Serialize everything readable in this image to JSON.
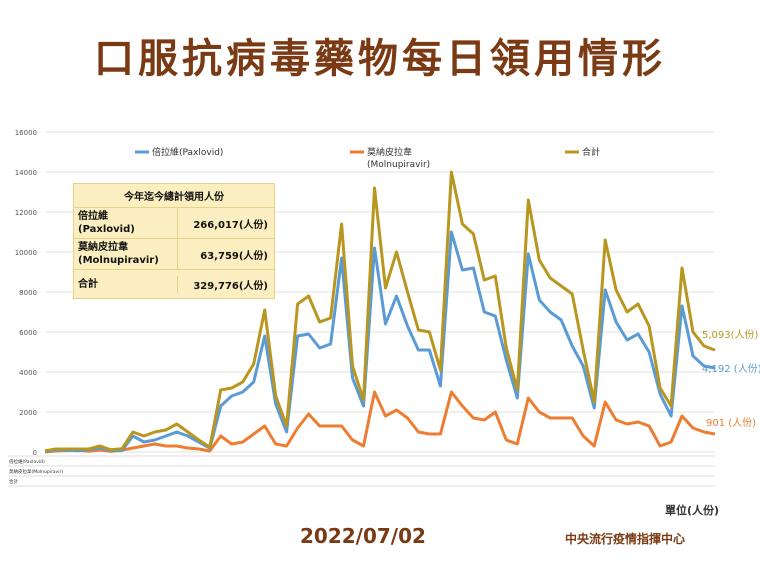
{
  "title": "口服抗病毒藥物每日領用情形",
  "date_label": "2022/07/02",
  "source_label": "中央流行疫情指揮中心",
  "unit_label": "單位(人份)",
  "summary_table": {
    "header": "今年迄今總計領用人份",
    "rows": [
      {
        "label": "倍拉維\n(Paxlovid)",
        "value": "266,017(人份)"
      },
      {
        "label": "莫納皮拉韋\n(Molnupiravir)",
        "value": "63,759(人份)"
      },
      {
        "label": "合計",
        "value": "329,776(人份)"
      }
    ]
  },
  "end_labels": {
    "total": "5,093(人份)",
    "paxlovid": "4,192 (人份)",
    "molnupiravir": "901 (人份)"
  },
  "colors": {
    "paxlovid": "#5b9bd5",
    "molnupiravir": "#ed7d31",
    "total": "#b8961f",
    "title": "#7a3a14"
  },
  "chart_data": {
    "type": "line",
    "ylim": [
      0,
      16000
    ],
    "yticks": [
      0,
      2000,
      4000,
      6000,
      8000,
      10000,
      12000,
      14000,
      16000
    ],
    "grid": true,
    "legend_position": "top",
    "series": [
      {
        "name": "倍拉維(Paxlovid)",
        "key": "paxlovid",
        "values": [
          20,
          100,
          90,
          60,
          110,
          190,
          80,
          70,
          800,
          500,
          600,
          800,
          1000,
          800,
          500,
          190,
          2300,
          2800,
          3000,
          3500,
          5800,
          2400,
          1000,
          5800,
          5900,
          5200,
          5400,
          9700,
          3700,
          2300,
          10200,
          6400,
          7800,
          6300,
          5100,
          5100,
          3300,
          11000,
          9100,
          9200,
          7000,
          6800,
          4600,
          2700,
          9900,
          7600,
          7000,
          6600,
          5300,
          4300,
          2200,
          8100,
          6500,
          5600,
          5900,
          5000,
          2900,
          1800,
          7300,
          4800,
          4300,
          4200
        ]
      },
      {
        "name": "莫納皮拉韋\n(Molnupiravir)",
        "key": "molnupiravir",
        "values": [
          0,
          50,
          70,
          90,
          40,
          100,
          30,
          90,
          200,
          300,
          400,
          300,
          300,
          200,
          150,
          50,
          800,
          400,
          500,
          900,
          1300,
          400,
          300,
          1200,
          1900,
          1300,
          1300,
          1300,
          600,
          300,
          3000,
          1800,
          2100,
          1700,
          1000,
          900,
          900,
          3000,
          2300,
          1700,
          1600,
          2000,
          600,
          400,
          2700,
          2000,
          1700,
          1700,
          1700,
          800,
          300,
          2500,
          1600,
          1400,
          1500,
          1300,
          300,
          500,
          1800,
          1200,
          1000,
          900
        ]
      },
      {
        "name": "合計",
        "key": "total",
        "values": [
          60,
          150,
          150,
          150,
          150,
          300,
          110,
          160,
          1000,
          800,
          1000,
          1100,
          1400,
          1000,
          600,
          240,
          3100,
          3200,
          3500,
          4400,
          7100,
          2800,
          1300,
          7400,
          7800,
          6500,
          6700,
          11400,
          4300,
          2600,
          13200,
          8200,
          10000,
          8000,
          6100,
          6000,
          4100,
          14000,
          11400,
          10900,
          8600,
          8800,
          5200,
          3100,
          12600,
          9600,
          8700,
          8300,
          7900,
          5100,
          2500,
          10600,
          8100,
          7000,
          7400,
          6300,
          3200,
          2300,
          9200,
          6000,
          5300,
          5093
        ]
      }
    ],
    "table_rows": [
      "倍拉維(Paxlovid)",
      "莫納皮拉韋(Molnupiravir)",
      "合計"
    ]
  }
}
